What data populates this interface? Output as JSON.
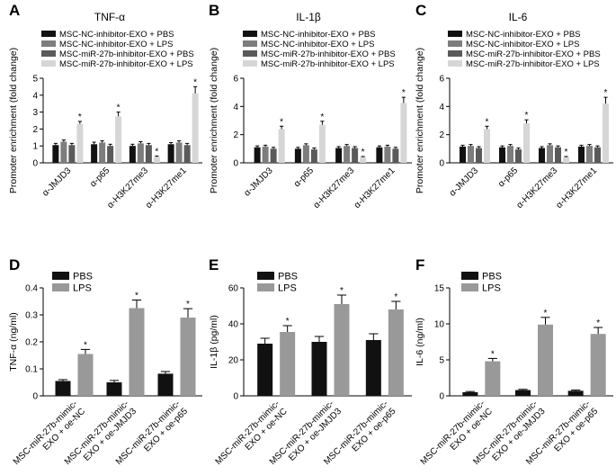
{
  "chart_data": [
    {
      "panel": "A",
      "type": "bar",
      "title": "TNF-α",
      "ylabel": "Promoter enrichment (fold change)",
      "ylim": [
        0,
        5
      ],
      "yticks": [
        0,
        1,
        2,
        3,
        4,
        5
      ],
      "categories": [
        "α-JMJD3",
        "α-p65",
        "α-H3K27me3",
        "α-H3K27me1"
      ],
      "series": [
        {
          "name": "MSC-NC-inhibitor-EXO + PBS",
          "values": [
            1.05,
            1.1,
            1.0,
            1.1
          ],
          "errors": [
            0.1,
            0.12,
            0.1,
            0.1
          ],
          "color": "#111111"
        },
        {
          "name": "MSC-NC-inhibitor-EXO + LPS",
          "values": [
            1.25,
            1.2,
            1.15,
            1.2
          ],
          "errors": [
            0.1,
            0.1,
            0.1,
            0.1
          ],
          "color": "#7d7d7d"
        },
        {
          "name": "MSC-miR-27b-inhibitor-EXO + PBS",
          "values": [
            1.05,
            1.0,
            1.05,
            1.05
          ],
          "errors": [
            0.1,
            0.1,
            0.1,
            0.1
          ],
          "color": "#5a5a5a"
        },
        {
          "name": "MSC-miR-27b-inhibitor-EXO + LPS",
          "values": [
            2.3,
            2.75,
            0.35,
            4.1
          ],
          "errors": [
            0.15,
            0.25,
            0.05,
            0.4
          ],
          "color": "#d6d6d6"
        }
      ],
      "significance": "*"
    },
    {
      "panel": "B",
      "type": "bar",
      "title": "IL-1β",
      "ylabel": "Promoter enrichment (fold change)",
      "ylim": [
        0,
        6
      ],
      "yticks": [
        0,
        2,
        4,
        6
      ],
      "categories": [
        "α-JMJD3",
        "α-p65",
        "α-H3K27me3",
        "α-H3K27me1"
      ],
      "series": [
        {
          "name": "MSC-NC-inhibitor-EXO + PBS",
          "values": [
            1.1,
            1.0,
            1.05,
            1.1
          ],
          "errors": [
            0.1,
            0.1,
            0.1,
            0.1
          ],
          "color": "#111111"
        },
        {
          "name": "MSC-NC-inhibitor-EXO + LPS",
          "values": [
            1.15,
            1.25,
            1.2,
            1.15
          ],
          "errors": [
            0.1,
            0.1,
            0.1,
            0.1
          ],
          "color": "#7d7d7d"
        },
        {
          "name": "MSC-miR-27b-inhibitor-EXO + PBS",
          "values": [
            1.0,
            0.95,
            1.05,
            1.0
          ],
          "errors": [
            0.1,
            0.1,
            0.1,
            0.1
          ],
          "color": "#5a5a5a"
        },
        {
          "name": "MSC-miR-27b-inhibitor-EXO + LPS",
          "values": [
            2.4,
            2.7,
            0.4,
            4.25
          ],
          "errors": [
            0.2,
            0.25,
            0.05,
            0.4
          ],
          "color": "#d6d6d6"
        }
      ],
      "significance": "*"
    },
    {
      "panel": "C",
      "type": "bar",
      "title": "IL-6",
      "ylabel": "Promoter enrichment (fold change)",
      "ylim": [
        0,
        6
      ],
      "yticks": [
        0,
        2,
        4,
        6
      ],
      "categories": [
        "α-JMJD3",
        "α-p65",
        "α-H3K27me3",
        "α-H3K27me1"
      ],
      "series": [
        {
          "name": "MSC-NC-inhibitor-EXO + PBS",
          "values": [
            1.15,
            1.1,
            1.05,
            1.15
          ],
          "errors": [
            0.1,
            0.1,
            0.1,
            0.1
          ],
          "color": "#111111"
        },
        {
          "name": "MSC-NC-inhibitor-EXO + LPS",
          "values": [
            1.2,
            1.2,
            1.25,
            1.2
          ],
          "errors": [
            0.1,
            0.1,
            0.1,
            0.1
          ],
          "color": "#7d7d7d"
        },
        {
          "name": "MSC-miR-27b-inhibitor-EXO + PBS",
          "values": [
            1.05,
            0.95,
            1.1,
            1.1
          ],
          "errors": [
            0.1,
            0.1,
            0.1,
            0.1
          ],
          "color": "#5a5a5a"
        },
        {
          "name": "MSC-miR-27b-inhibitor-EXO + LPS",
          "values": [
            2.4,
            2.8,
            0.4,
            4.2
          ],
          "errors": [
            0.2,
            0.25,
            0.05,
            0.45
          ],
          "color": "#d6d6d6"
        }
      ],
      "significance": "*"
    },
    {
      "panel": "D",
      "type": "bar",
      "title": "",
      "ylabel": "TNF-α (ng/ml)",
      "ylim": [
        0,
        0.4
      ],
      "yticks": [
        0,
        0.1,
        0.2,
        0.3,
        0.4
      ],
      "categories": [
        "MSC-miR-27b-mimic-EXO + oe-NC",
        "MSC-miR-27b-mimic-EXO + oe-JMJD3",
        "MSC-miR-27b-mimic-EXO + oe-p65"
      ],
      "series": [
        {
          "name": "PBS",
          "values": [
            0.055,
            0.05,
            0.082
          ],
          "errors": [
            0.005,
            0.007,
            0.008
          ],
          "color": "#111111"
        },
        {
          "name": "LPS",
          "values": [
            0.155,
            0.325,
            0.29
          ],
          "errors": [
            0.017,
            0.03,
            0.033
          ],
          "color": "#999999"
        }
      ],
      "significance": "*"
    },
    {
      "panel": "E",
      "type": "bar",
      "title": "",
      "ylabel": "IL-1β (pg/ml)",
      "ylim": [
        0,
        60
      ],
      "yticks": [
        0,
        20,
        40,
        60
      ],
      "categories": [
        "MSC-miR-27b-mimic-EXO + oe-NC",
        "MSC-miR-27b-mimic-EXO + oe-JMJD3",
        "MSC-miR-27b-mimic-EXO + oe-p65"
      ],
      "series": [
        {
          "name": "PBS",
          "values": [
            29,
            30,
            31
          ],
          "errors": [
            3,
            3,
            3.5
          ],
          "color": "#111111"
        },
        {
          "name": "LPS",
          "values": [
            35.5,
            51,
            48
          ],
          "errors": [
            3.5,
            5,
            4.5
          ],
          "color": "#999999"
        }
      ],
      "significance": "*"
    },
    {
      "panel": "F",
      "type": "bar",
      "title": "",
      "ylabel": "IL-6 (ng/ml)",
      "ylim": [
        0,
        15
      ],
      "yticks": [
        0,
        5,
        10,
        15
      ],
      "categories": [
        "MSC-miR-27b-mimic-EXO + oe-NC",
        "MSC-miR-27b-mimic-EXO + oe-JMJD3",
        "MSC-miR-27b-mimic-EXO + oe-p65"
      ],
      "series": [
        {
          "name": "PBS",
          "values": [
            0.5,
            0.8,
            0.7
          ],
          "errors": [
            0.1,
            0.1,
            0.1
          ],
          "color": "#111111"
        },
        {
          "name": "LPS",
          "values": [
            4.8,
            9.9,
            8.6
          ],
          "errors": [
            0.4,
            1.0,
            0.9
          ],
          "color": "#999999"
        }
      ],
      "significance": "*"
    }
  ]
}
